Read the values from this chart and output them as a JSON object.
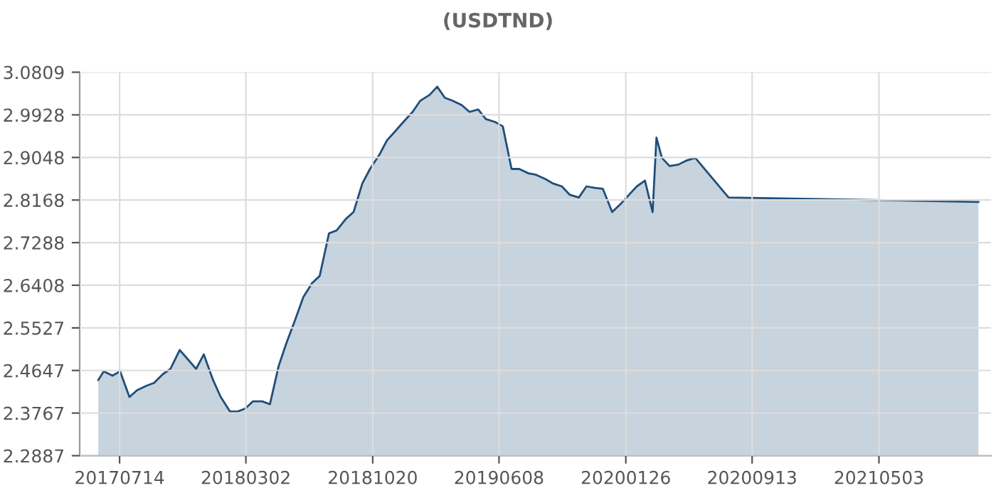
{
  "chart_data": {
    "type": "area",
    "title": "(USDTND)",
    "x": [
      "2017-06-05",
      "2017-06-15",
      "2017-07-01",
      "2017-07-15",
      "2017-08-01",
      "2017-08-15",
      "2017-09-01",
      "2017-09-15",
      "2017-10-01",
      "2017-10-15",
      "2017-11-01",
      "2017-11-15",
      "2017-12-01",
      "2017-12-15",
      "2018-01-01",
      "2018-01-15",
      "2018-02-01",
      "2018-02-15",
      "2018-03-01",
      "2018-03-15",
      "2018-04-01",
      "2018-04-15",
      "2018-05-01",
      "2018-05-15",
      "2018-06-01",
      "2018-06-15",
      "2018-07-01",
      "2018-07-15",
      "2018-08-01",
      "2018-08-15",
      "2018-09-01",
      "2018-09-15",
      "2018-10-01",
      "2018-10-15",
      "2018-11-01",
      "2018-11-15",
      "2018-12-01",
      "2018-12-15",
      "2019-01-01",
      "2019-01-15",
      "2019-02-01",
      "2019-02-15",
      "2019-03-01",
      "2019-03-15",
      "2019-04-01",
      "2019-04-15",
      "2019-05-01",
      "2019-05-15",
      "2019-06-01",
      "2019-06-15",
      "2019-07-01",
      "2019-07-15",
      "2019-08-01",
      "2019-08-15",
      "2019-09-01",
      "2019-09-15",
      "2019-10-01",
      "2019-10-15",
      "2019-11-01",
      "2019-11-15",
      "2019-12-01",
      "2019-12-15",
      "2020-01-01",
      "2020-01-15",
      "2020-02-01",
      "2020-02-15",
      "2020-03-01",
      "2020-03-15",
      "2020-03-22",
      "2020-04-01",
      "2020-04-15",
      "2020-05-01",
      "2020-05-15",
      "2020-06-01",
      "2020-08-01",
      "2021-11-01"
    ],
    "series": [
      {
        "color": "#1f4e79",
        "values": [
          2.445,
          2.463,
          2.454,
          2.463,
          2.41,
          2.424,
          2.433,
          2.439,
          2.457,
          2.468,
          2.507,
          2.489,
          2.468,
          2.498,
          2.445,
          2.41,
          2.38,
          2.38,
          2.386,
          2.401,
          2.401,
          2.395,
          2.474,
          2.521,
          2.572,
          2.616,
          2.645,
          2.66,
          2.748,
          2.754,
          2.778,
          2.792,
          2.851,
          2.881,
          2.91,
          2.94,
          2.96,
          2.978,
          2.999,
          3.022,
          3.034,
          3.051,
          3.028,
          3.022,
          3.013,
          2.999,
          3.004,
          2.984,
          2.978,
          2.969,
          2.881,
          2.881,
          2.872,
          2.869,
          2.86,
          2.851,
          2.845,
          2.828,
          2.822,
          2.845,
          2.842,
          2.84,
          2.792,
          2.807,
          2.828,
          2.845,
          2.857,
          2.792,
          2.946,
          2.904,
          2.887,
          2.89,
          2.898,
          2.904,
          2.822,
          2.813
        ]
      }
    ],
    "xlim": [
      "2017-05-02",
      "2021-11-24"
    ],
    "xticks": [
      {
        "value": "2017-07-14",
        "label": "20170714"
      },
      {
        "value": "2018-03-02",
        "label": "20180302"
      },
      {
        "value": "2018-10-20",
        "label": "20181020"
      },
      {
        "value": "2019-06-08",
        "label": "20190608"
      },
      {
        "value": "2020-01-26",
        "label": "20200126"
      },
      {
        "value": "2020-09-13",
        "label": "20200913"
      },
      {
        "value": "2021-05-03",
        "label": "20210503"
      }
    ],
    "ylim": [
      2.2887,
      3.0809
    ],
    "yticks": [
      2.2887,
      2.3767,
      2.4647,
      2.5527,
      2.6408,
      2.7288,
      2.8168,
      2.9048,
      2.9928,
      3.0809
    ],
    "grid": true
  }
}
